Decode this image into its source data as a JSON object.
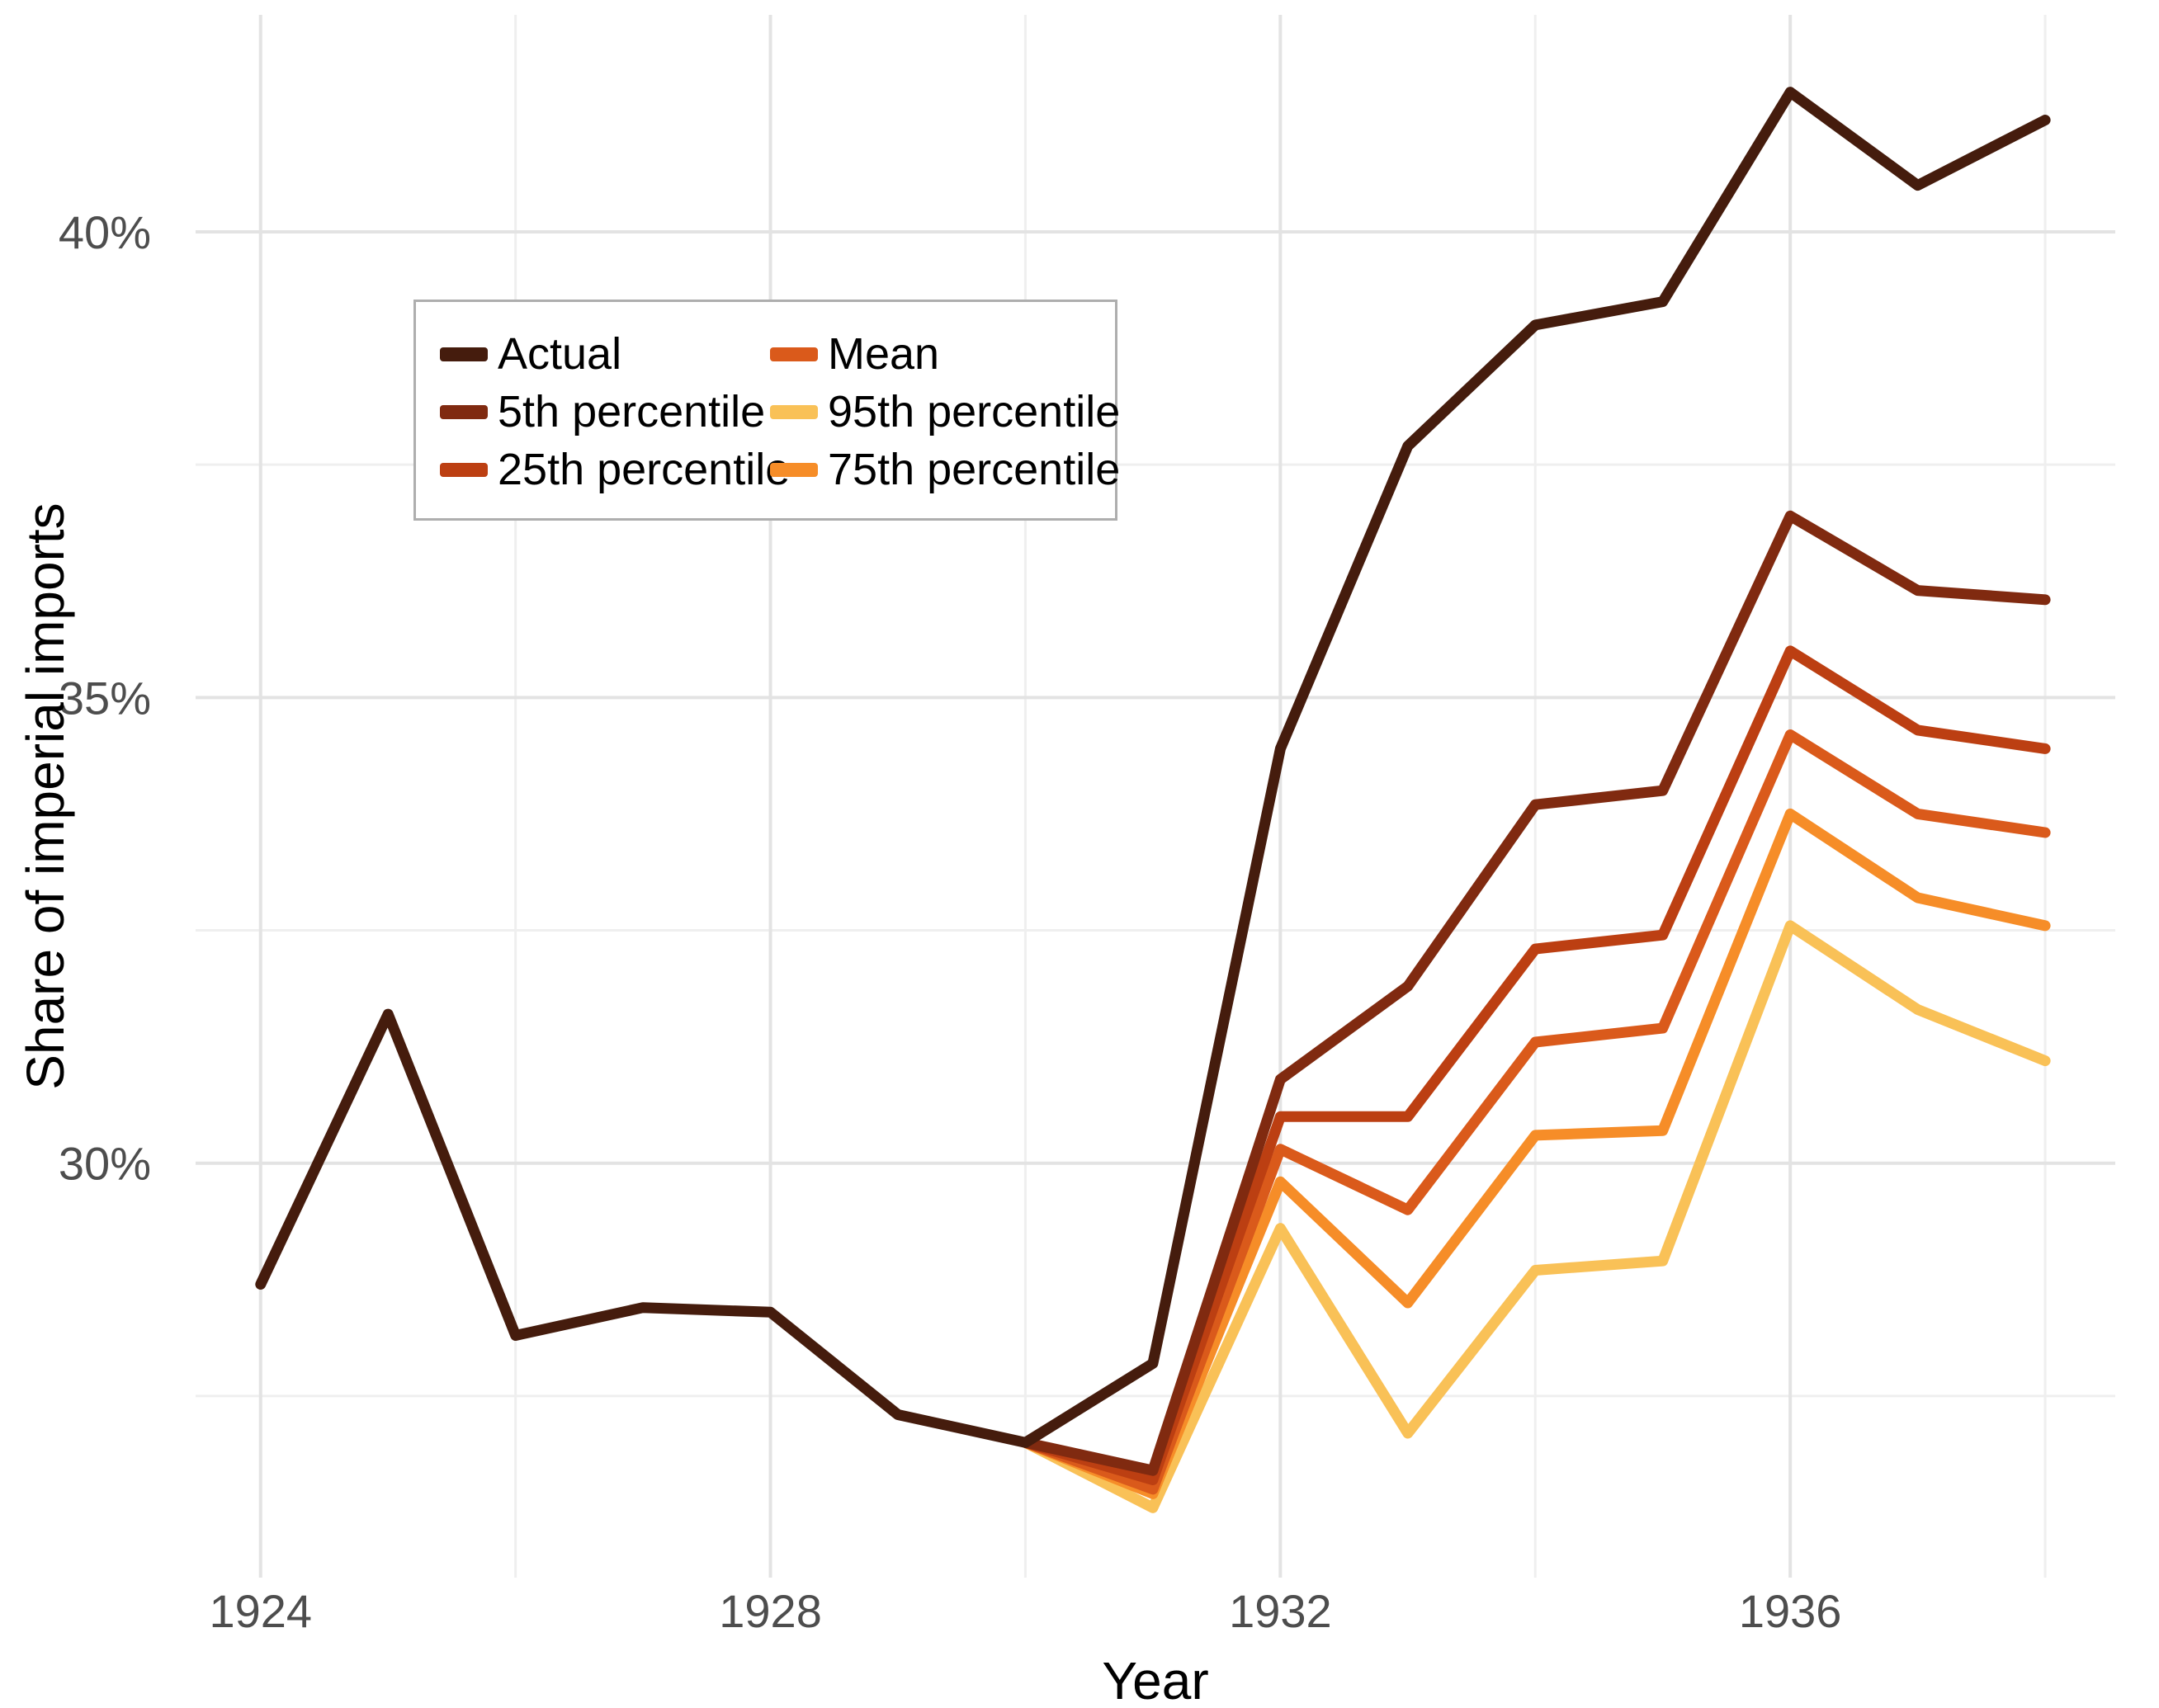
{
  "page": {
    "background_color": "#ffffff",
    "tick_label_color": "#4d4d4d",
    "grid_major_color": "#e3e3e3",
    "grid_minor_color": "#efefef",
    "legend_border_color": "#aeaeae"
  },
  "axes": {
    "x_title": "Year",
    "y_title": "Share of imperial imports",
    "x_tick_labels": [
      "1924",
      "1928",
      "1932",
      "1936"
    ],
    "y_tick_labels": [
      "30%",
      "35%",
      "40%"
    ]
  },
  "legend": {
    "items": [
      {
        "label": "Actual",
        "color": "#451c0d"
      },
      {
        "label": "5th percentile",
        "color": "#802a10"
      },
      {
        "label": "25th percentile",
        "color": "#bc3f12"
      },
      {
        "label": "Mean",
        "color": "#da5a1b"
      },
      {
        "label": "95th percentile",
        "color": "#f9c157"
      },
      {
        "label": "75th percentile",
        "color": "#f68d28"
      }
    ]
  },
  "chart_data": {
    "type": "line",
    "title": "",
    "xlabel": "Year",
    "ylabel": "Share of imperial imports",
    "grid": true,
    "legend_position": "inside top-left",
    "x_range": [
      1923.49,
      1938.55
    ],
    "y_range": [
      25.55,
      42.33
    ],
    "x_major_ticks": [
      1924,
      1928,
      1932,
      1936
    ],
    "x_minor_ticks": [
      1926,
      1930,
      1934,
      1938
    ],
    "y_major_ticks": [
      30,
      35,
      40
    ],
    "y_minor_ticks": [
      27.5,
      32.5,
      37.5
    ],
    "y_unit": "percent",
    "series": [
      {
        "name": "95th percentile",
        "color": "#f9c157",
        "x": [
          1930,
          1931,
          1932,
          1933,
          1934,
          1935,
          1936,
          1937,
          1938
        ],
        "y": [
          27.0,
          26.3,
          29.3,
          27.1,
          28.85,
          28.95,
          32.55,
          31.65,
          31.1
        ]
      },
      {
        "name": "75th percentile",
        "color": "#f68d28",
        "x": [
          1930,
          1931,
          1932,
          1933,
          1934,
          1935,
          1936,
          1937,
          1938
        ],
        "y": [
          27.0,
          26.45,
          29.8,
          28.5,
          30.3,
          30.35,
          33.75,
          32.85,
          32.55
        ]
      },
      {
        "name": "Mean",
        "color": "#da5a1b",
        "x": [
          1930,
          1931,
          1932,
          1933,
          1934,
          1935,
          1936,
          1937,
          1938
        ],
        "y": [
          27.0,
          26.5,
          30.15,
          29.5,
          31.3,
          31.45,
          34.6,
          33.75,
          33.55
        ]
      },
      {
        "name": "25th percentile",
        "color": "#bc3f12",
        "x": [
          1930,
          1931,
          1932,
          1933,
          1934,
          1935,
          1936,
          1937,
          1938
        ],
        "y": [
          27.0,
          26.6,
          30.5,
          30.5,
          32.3,
          32.45,
          35.5,
          34.65,
          34.45
        ]
      },
      {
        "name": "5th percentile",
        "color": "#802a10",
        "x": [
          1930,
          1931,
          1932,
          1933,
          1934,
          1935,
          1936,
          1937,
          1938
        ],
        "y": [
          27.0,
          26.7,
          30.9,
          31.9,
          33.85,
          34.0,
          36.95,
          36.15,
          36.05
        ]
      },
      {
        "name": "Actual",
        "color": "#451c0d",
        "x": [
          1924,
          1925,
          1926,
          1927,
          1928,
          1929,
          1930,
          1931,
          1932,
          1933,
          1934,
          1935,
          1936,
          1937,
          1938
        ],
        "y": [
          28.7,
          31.6,
          28.15,
          28.45,
          28.4,
          27.3,
          27.0,
          27.85,
          34.45,
          37.7,
          39.0,
          39.25,
          41.5,
          40.5,
          41.2
        ]
      }
    ]
  }
}
